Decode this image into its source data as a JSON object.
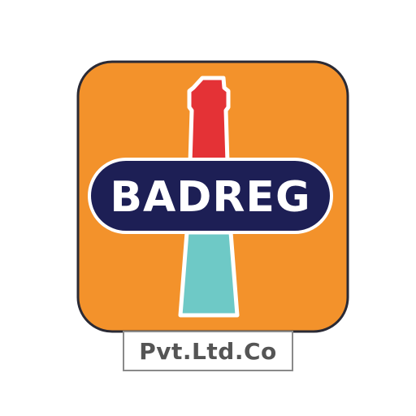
{
  "logo": {
    "name": "BADREG",
    "subtitle": "Pvt.Ltd.Co"
  },
  "colors": {
    "tile_orange": "#f3922b",
    "tile_outline": "#2a2a35",
    "banner_navy": "#1d1f55",
    "tube_red": "#e43236",
    "tube_teal": "#6ec9c6",
    "text_white": "#ffffff",
    "subtitle_text": "#555555",
    "subtitle_border": "#8a8a8a"
  }
}
